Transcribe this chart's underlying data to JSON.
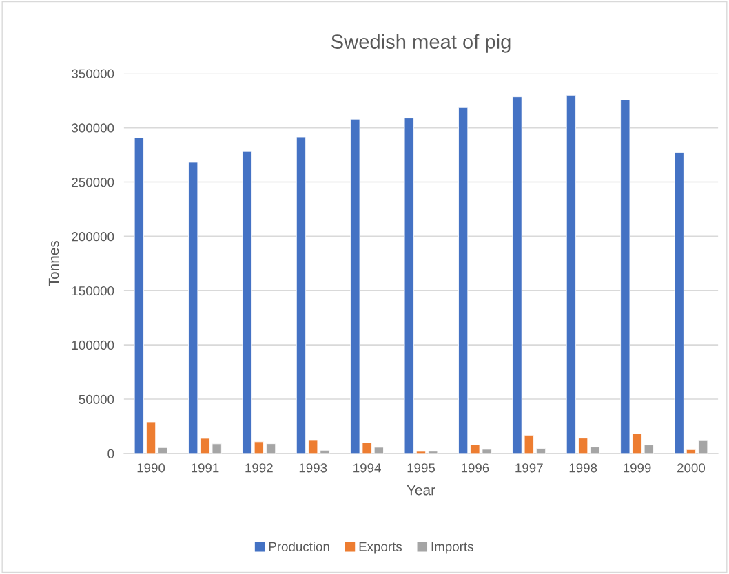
{
  "chart_data": {
    "type": "bar",
    "title": "Swedish meat of pig",
    "xlabel": "Year",
    "ylabel": "Tonnes",
    "categories": [
      "1990",
      "1991",
      "1992",
      "1993",
      "1994",
      "1995",
      "1996",
      "1997",
      "1998",
      "1999",
      "2000"
    ],
    "series": [
      {
        "name": "Production",
        "color": "#4472c4",
        "values": [
          290600,
          268100,
          278100,
          291500,
          307900,
          308900,
          318600,
          328500,
          330000,
          325600,
          277300
        ]
      },
      {
        "name": "Exports",
        "color": "#ed7d31",
        "values": [
          29100,
          13900,
          10800,
          12000,
          9900,
          1900,
          8200,
          16800,
          14100,
          18100,
          3500
        ]
      },
      {
        "name": "Imports",
        "color": "#a5a5a5",
        "values": [
          5400,
          8900,
          9000,
          2900,
          5700,
          2000,
          3800,
          4600,
          5900,
          7800,
          11800
        ]
      }
    ],
    "ylim": [
      0,
      350000
    ],
    "yticks": [
      0,
      50000,
      100000,
      150000,
      200000,
      250000,
      300000,
      350000
    ],
    "grid": "y",
    "legend": "bottom"
  }
}
